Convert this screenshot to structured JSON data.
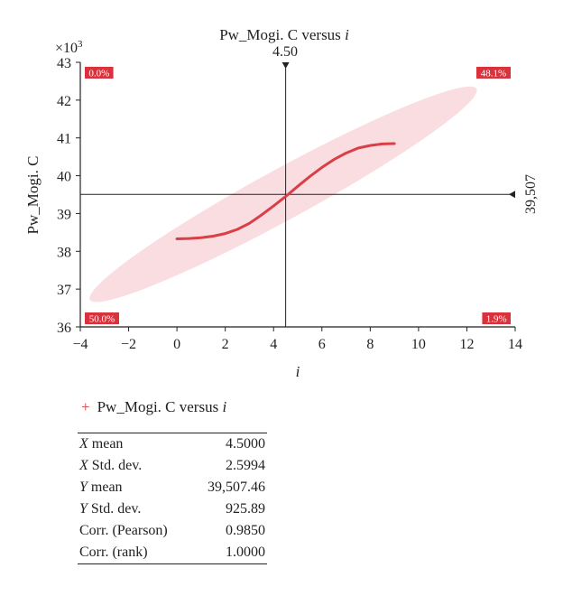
{
  "chart_data": {
    "type": "line",
    "title": "Pw_Mogi. C versus i",
    "xlabel": "i",
    "ylabel": "Pw_Mogi. C",
    "y_multiplier_label": "×10",
    "y_multiplier_exp": "3",
    "xlim": [
      -4,
      14
    ],
    "ylim": [
      36,
      43
    ],
    "x_ticks": [
      "−4",
      "−2",
      "0",
      "2",
      "4",
      "6",
      "8",
      "10",
      "12",
      "14"
    ],
    "y_ticks": [
      "36",
      "37",
      "38",
      "39",
      "40",
      "41",
      "42",
      "43"
    ],
    "crosshair": {
      "x": 4.5,
      "x_label": "4.50",
      "y": 39.507,
      "y_label": "39,507"
    },
    "quadrant_labels": {
      "top_left": "0.0%",
      "top_right": "48.1%",
      "bottom_left": "50.0%",
      "bottom_right": "1.9%"
    },
    "series": [
      {
        "name": "Pw_Mogi. C versus i",
        "x": [
          0,
          0.5,
          1,
          1.5,
          2,
          2.5,
          3,
          3.5,
          4,
          4.5,
          5,
          5.5,
          6,
          6.5,
          7,
          7.5,
          8,
          8.5,
          9
        ],
        "y": [
          38.33,
          38.34,
          38.36,
          38.4,
          38.47,
          38.58,
          38.74,
          38.96,
          39.2,
          39.45,
          39.72,
          39.98,
          40.22,
          40.43,
          40.6,
          40.73,
          40.8,
          40.84,
          40.85
        ]
      }
    ],
    "ellipse": {
      "from": [
        -3.6,
        36.72
      ],
      "to": [
        12.4,
        42.3
      ]
    },
    "colors": {
      "series": "#d93f46",
      "ellipse": "#f9dde1",
      "quadrant_label_bg": "#d9323c"
    }
  },
  "legend": {
    "marker": "+",
    "label": "Pw_Mogi. C versus ",
    "label_var": "i"
  },
  "stats": [
    {
      "var": "X",
      "label": " mean",
      "value": "4.5000"
    },
    {
      "var": "X",
      "label": " Std. dev.",
      "value": "2.5994"
    },
    {
      "var": "Y",
      "label": " mean",
      "value": "39,507.46"
    },
    {
      "var": "Y",
      "label": " Std. dev.",
      "value": "925.89"
    },
    {
      "var": "",
      "label": "Corr. (Pearson)",
      "value": "0.9850"
    },
    {
      "var": "",
      "label": "Corr. (rank)",
      "value": "1.0000"
    }
  ]
}
